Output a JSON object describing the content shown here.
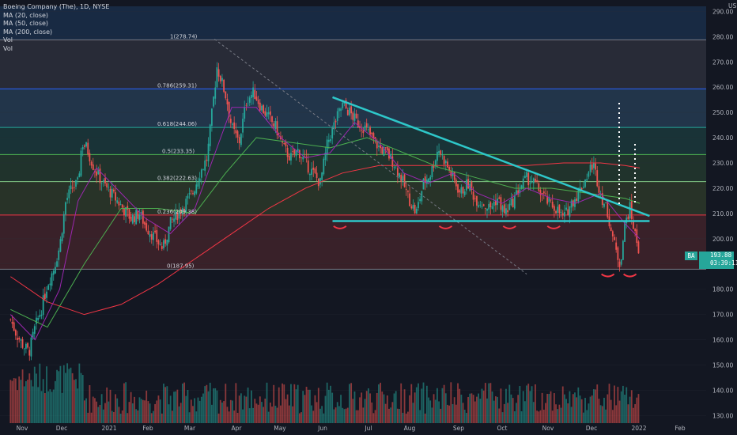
{
  "legend": {
    "title": "Boeing Company (The), 1D, NYSE",
    "ma20": "MA (20, close)",
    "ma50": "MA (50, close)",
    "ma200": "MA (200, close)",
    "vol1": "Vol",
    "vol2": "Vol"
  },
  "colors": {
    "background": "#131722",
    "ma20": "#9c27b0",
    "ma50": "#4caf50",
    "ma200": "#f23645",
    "trendline": "#2ec7c9",
    "up": "#26a69a",
    "down": "#ef5350"
  },
  "price_tag": {
    "symbol": "BA",
    "price": "193.88",
    "countdown": "03:39:11"
  },
  "chart_data": {
    "type": "candlestick",
    "title": "Boeing Company (The), 1D, NYSE",
    "currency_label": "USD",
    "y_ticks": [
      "290.00",
      "280.00",
      "270.00",
      "260.00",
      "250.00",
      "240.00",
      "230.00",
      "220.00",
      "210.00",
      "200.00",
      "190.00",
      "180.00",
      "170.00",
      "160.00",
      "150.00",
      "140.00",
      "130.00"
    ],
    "ylim": [
      127,
      292
    ],
    "x_ticks": [
      "Nov",
      "Dec",
      "2021",
      "Feb",
      "Mar",
      "Apr",
      "May",
      "Jun",
      "Jul",
      "Aug",
      "Sep",
      "Oct",
      "Nov",
      "Dec",
      "2022",
      "Feb"
    ],
    "fib_levels": [
      {
        "label": "1(278.74)",
        "value": 278.74,
        "color": "#787b86"
      },
      {
        "label": "0.786(259.31)",
        "value": 259.31,
        "color": "#2962ff"
      },
      {
        "label": "0.618(244.06)",
        "value": 244.06,
        "color": "#26a69a"
      },
      {
        "label": "0.5(233.35)",
        "value": 233.35,
        "color": "#4caf50"
      },
      {
        "label": "0.382(222.63)",
        "value": 222.63,
        "color": "#81c784"
      },
      {
        "label": "0.236(209.38)",
        "value": 209.38,
        "color": "#f23645"
      },
      {
        "label": "0(187.95)",
        "value": 187.95,
        "color": "#787b86"
      }
    ],
    "top_zone": [
      278.74,
      292
    ],
    "close_series": [
      {
        "d": 0,
        "c": 168
      },
      {
        "d": 5,
        "c": 162
      },
      {
        "d": 10,
        "c": 158
      },
      {
        "d": 15,
        "c": 155
      },
      {
        "d": 20,
        "c": 165
      },
      {
        "d": 25,
        "c": 172
      },
      {
        "d": 30,
        "c": 182
      },
      {
        "d": 35,
        "c": 188
      },
      {
        "d": 40,
        "c": 197
      },
      {
        "d": 45,
        "c": 215
      },
      {
        "d": 50,
        "c": 220
      },
      {
        "d": 55,
        "c": 222
      },
      {
        "d": 58,
        "c": 238
      },
      {
        "d": 62,
        "c": 236
      },
      {
        "d": 68,
        "c": 228
      },
      {
        "d": 75,
        "c": 222
      },
      {
        "d": 82,
        "c": 218
      },
      {
        "d": 90,
        "c": 213
      },
      {
        "d": 98,
        "c": 208
      },
      {
        "d": 105,
        "c": 210
      },
      {
        "d": 110,
        "c": 205
      },
      {
        "d": 118,
        "c": 200
      },
      {
        "d": 124,
        "c": 196
      },
      {
        "d": 130,
        "c": 206
      },
      {
        "d": 136,
        "c": 210
      },
      {
        "d": 142,
        "c": 214
      },
      {
        "d": 148,
        "c": 218
      },
      {
        "d": 154,
        "c": 226
      },
      {
        "d": 160,
        "c": 232
      },
      {
        "d": 164,
        "c": 250
      },
      {
        "d": 168,
        "c": 268
      },
      {
        "d": 172,
        "c": 262
      },
      {
        "d": 176,
        "c": 255
      },
      {
        "d": 180,
        "c": 244
      },
      {
        "d": 186,
        "c": 238
      },
      {
        "d": 192,
        "c": 255
      },
      {
        "d": 198,
        "c": 258
      },
      {
        "d": 204,
        "c": 252
      },
      {
        "d": 210,
        "c": 248
      },
      {
        "d": 216,
        "c": 244
      },
      {
        "d": 222,
        "c": 236
      },
      {
        "d": 228,
        "c": 232
      },
      {
        "d": 234,
        "c": 235
      },
      {
        "d": 240,
        "c": 230
      },
      {
        "d": 246,
        "c": 226
      },
      {
        "d": 252,
        "c": 222
      },
      {
        "d": 258,
        "c": 238
      },
      {
        "d": 264,
        "c": 246
      },
      {
        "d": 270,
        "c": 253
      },
      {
        "d": 276,
        "c": 250
      },
      {
        "d": 282,
        "c": 246
      },
      {
        "d": 288,
        "c": 244
      },
      {
        "d": 294,
        "c": 240
      },
      {
        "d": 300,
        "c": 236
      },
      {
        "d": 306,
        "c": 234
      },
      {
        "d": 312,
        "c": 230
      },
      {
        "d": 318,
        "c": 224
      },
      {
        "d": 324,
        "c": 216
      },
      {
        "d": 330,
        "c": 210
      },
      {
        "d": 336,
        "c": 222
      },
      {
        "d": 342,
        "c": 226
      },
      {
        "d": 348,
        "c": 236
      },
      {
        "d": 354,
        "c": 230
      },
      {
        "d": 360,
        "c": 224
      },
      {
        "d": 366,
        "c": 218
      },
      {
        "d": 372,
        "c": 222
      },
      {
        "d": 378,
        "c": 216
      },
      {
        "d": 384,
        "c": 214
      },
      {
        "d": 390,
        "c": 212
      },
      {
        "d": 396,
        "c": 216
      },
      {
        "d": 402,
        "c": 210
      },
      {
        "d": 408,
        "c": 214
      },
      {
        "d": 414,
        "c": 220
      },
      {
        "d": 420,
        "c": 224
      },
      {
        "d": 426,
        "c": 222
      },
      {
        "d": 432,
        "c": 218
      },
      {
        "d": 438,
        "c": 214
      },
      {
        "d": 444,
        "c": 212
      },
      {
        "d": 450,
        "c": 208
      },
      {
        "d": 456,
        "c": 214
      },
      {
        "d": 462,
        "c": 218
      },
      {
        "d": 468,
        "c": 224
      },
      {
        "d": 474,
        "c": 230
      },
      {
        "d": 480,
        "c": 218
      },
      {
        "d": 486,
        "c": 210
      },
      {
        "d": 492,
        "c": 196
      },
      {
        "d": 496,
        "c": 190
      },
      {
        "d": 500,
        "c": 206
      },
      {
        "d": 504,
        "c": 212
      },
      {
        "d": 508,
        "c": 202
      },
      {
        "d": 512,
        "c": 194
      }
    ],
    "ma_note": "MA lines approximated",
    "ma20_series": [
      {
        "d": 0,
        "c": 170
      },
      {
        "d": 20,
        "c": 160
      },
      {
        "d": 40,
        "c": 180
      },
      {
        "d": 55,
        "c": 215
      },
      {
        "d": 70,
        "c": 228
      },
      {
        "d": 90,
        "c": 218
      },
      {
        "d": 110,
        "c": 208
      },
      {
        "d": 130,
        "c": 202
      },
      {
        "d": 150,
        "c": 212
      },
      {
        "d": 165,
        "c": 232
      },
      {
        "d": 180,
        "c": 252
      },
      {
        "d": 200,
        "c": 252
      },
      {
        "d": 220,
        "c": 240
      },
      {
        "d": 240,
        "c": 232
      },
      {
        "d": 260,
        "c": 234
      },
      {
        "d": 280,
        "c": 246
      },
      {
        "d": 300,
        "c": 238
      },
      {
        "d": 320,
        "c": 226
      },
      {
        "d": 340,
        "c": 222
      },
      {
        "d": 360,
        "c": 226
      },
      {
        "d": 380,
        "c": 218
      },
      {
        "d": 400,
        "c": 214
      },
      {
        "d": 420,
        "c": 220
      },
      {
        "d": 440,
        "c": 216
      },
      {
        "d": 460,
        "c": 214
      },
      {
        "d": 480,
        "c": 218
      },
      {
        "d": 500,
        "c": 206
      },
      {
        "d": 512,
        "c": 200
      }
    ],
    "ma50_series": [
      {
        "d": 0,
        "c": 172
      },
      {
        "d": 30,
        "c": 165
      },
      {
        "d": 60,
        "c": 190
      },
      {
        "d": 90,
        "c": 212
      },
      {
        "d": 120,
        "c": 212
      },
      {
        "d": 150,
        "c": 210
      },
      {
        "d": 175,
        "c": 226
      },
      {
        "d": 200,
        "c": 240
      },
      {
        "d": 230,
        "c": 238
      },
      {
        "d": 260,
        "c": 236
      },
      {
        "d": 290,
        "c": 240
      },
      {
        "d": 320,
        "c": 234
      },
      {
        "d": 350,
        "c": 228
      },
      {
        "d": 380,
        "c": 224
      },
      {
        "d": 410,
        "c": 220
      },
      {
        "d": 440,
        "c": 220
      },
      {
        "d": 470,
        "c": 218
      },
      {
        "d": 500,
        "c": 216
      },
      {
        "d": 512,
        "c": 214
      }
    ],
    "ma200_series": [
      {
        "d": 0,
        "c": 185
      },
      {
        "d": 30,
        "c": 175
      },
      {
        "d": 60,
        "c": 170
      },
      {
        "d": 90,
        "c": 174
      },
      {
        "d": 120,
        "c": 182
      },
      {
        "d": 150,
        "c": 192
      },
      {
        "d": 180,
        "c": 202
      },
      {
        "d": 210,
        "c": 212
      },
      {
        "d": 240,
        "c": 220
      },
      {
        "d": 270,
        "c": 226
      },
      {
        "d": 300,
        "c": 229
      },
      {
        "d": 330,
        "c": 229
      },
      {
        "d": 360,
        "c": 229
      },
      {
        "d": 390,
        "c": 229
      },
      {
        "d": 420,
        "c": 229
      },
      {
        "d": 450,
        "c": 230
      },
      {
        "d": 480,
        "c": 230
      },
      {
        "d": 500,
        "c": 229
      },
      {
        "d": 512,
        "c": 228
      }
    ],
    "descending_trendline": [
      {
        "d": 262,
        "c": 256
      },
      {
        "d": 520,
        "c": 209
      }
    ],
    "support_line": [
      {
        "d": 262,
        "c": 207
      },
      {
        "d": 520,
        "c": 207
      }
    ],
    "diagonal_dashed": [
      {
        "d": 166,
        "c": 279
      },
      {
        "d": 420,
        "c": 186
      }
    ],
    "volume_range": [
      0,
      1
    ]
  }
}
